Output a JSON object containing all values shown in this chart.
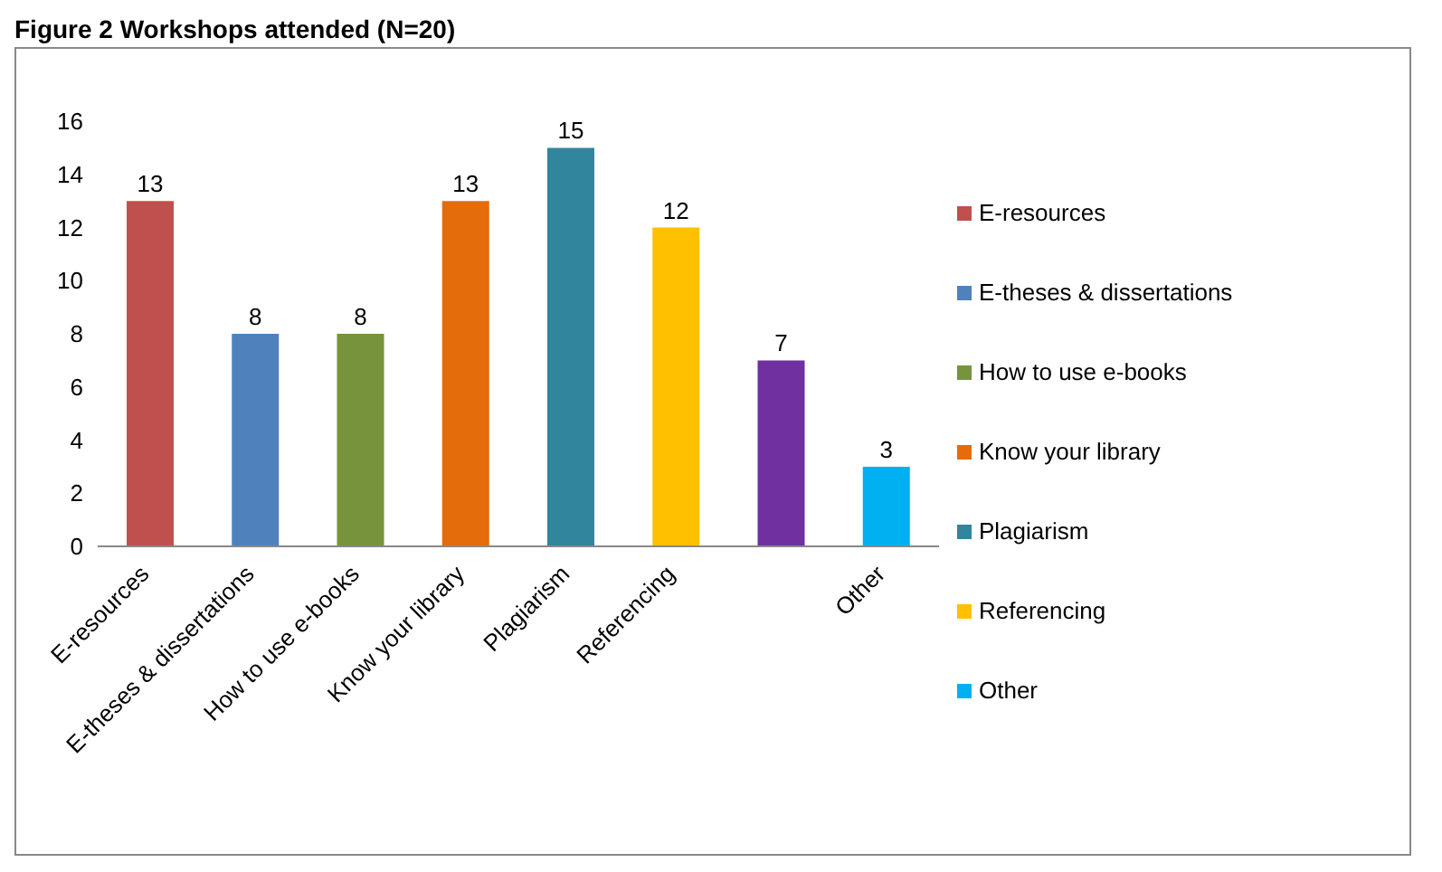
{
  "chart_data": {
    "type": "bar",
    "title": "Figure 2 Workshops attended (N=20)",
    "categories": [
      "E-resources",
      "E-theses & dissertations",
      "How to use e-books",
      "Know your library",
      "Plagiarism",
      "Referencing",
      null,
      "Other"
    ],
    "stacked": true,
    "series": [
      {
        "name": "E-resources",
        "color": "#c0504d",
        "values": [
          13,
          null,
          null,
          null,
          null,
          null,
          null,
          null
        ]
      },
      {
        "name": "E-theses & dissertations",
        "color": "#4f81bd",
        "values": [
          null,
          8,
          null,
          null,
          null,
          null,
          null,
          null
        ]
      },
      {
        "name": "How to use e-books",
        "color": "#77933c",
        "values": [
          null,
          null,
          8,
          null,
          null,
          null,
          null,
          null
        ]
      },
      {
        "name": "Know your library",
        "color": "#e46c0a",
        "values": [
          null,
          null,
          null,
          13,
          null,
          null,
          null,
          null
        ]
      },
      {
        "name": "Plagiarism",
        "color": "#31859c",
        "values": [
          null,
          null,
          null,
          null,
          15,
          null,
          null,
          null
        ]
      },
      {
        "name": "Referencing",
        "color": "#ffc000",
        "values": [
          null,
          null,
          null,
          null,
          null,
          12,
          null,
          null
        ]
      },
      {
        "color": "#7030a0",
        "values": [
          null,
          null,
          null,
          null,
          null,
          null,
          7,
          null
        ]
      },
      {
        "name": "Other",
        "color": "#00b0f0",
        "values": [
          null,
          null,
          null,
          null,
          null,
          null,
          null,
          3
        ]
      }
    ],
    "ylim": [
      0,
      16
    ],
    "yticks": [
      0,
      2,
      4,
      6,
      8,
      10,
      12,
      14,
      16
    ],
    "data_labels": true,
    "legend": "right",
    "grid": false
  }
}
